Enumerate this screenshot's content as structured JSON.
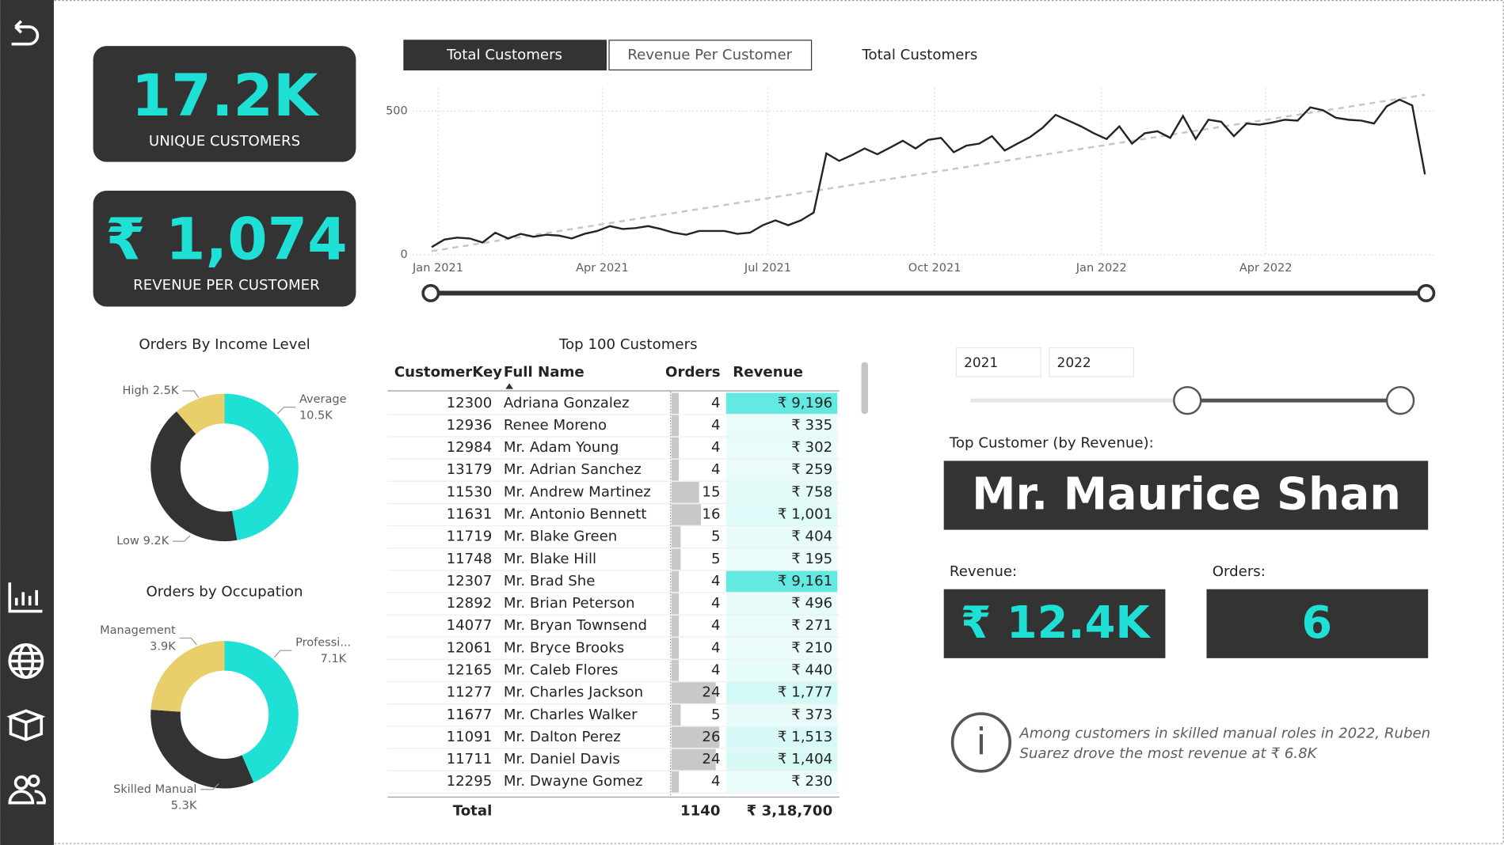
{
  "kpis": [
    {
      "value": "17.2K",
      "label": "UNIQUE CUSTOMERS"
    },
    {
      "value": "₹ 1,074",
      "label": "REVENUE PER CUSTOMER"
    }
  ],
  "buttons": [
    "Total Customers",
    "Revenue Per Customer"
  ],
  "chart_data": [
    {
      "type": "line",
      "title": "Total Customers",
      "color": "#252423",
      "x": [
        0,
        1,
        2,
        3,
        4,
        5,
        6,
        7,
        8,
        9,
        10,
        11,
        12,
        13,
        14,
        15,
        16,
        17,
        18,
        19,
        20,
        21,
        22,
        23,
        24,
        25,
        26,
        27,
        28,
        29,
        30,
        31,
        32,
        33,
        34,
        35,
        36,
        37,
        38,
        39,
        40,
        41,
        42,
        43,
        44,
        45,
        46,
        47,
        48,
        49,
        50,
        51,
        52,
        53,
        54,
        55,
        56,
        57,
        58,
        59,
        60,
        61,
        62,
        63,
        64,
        65,
        66,
        67,
        68,
        69,
        70,
        71,
        72,
        73,
        74,
        75,
        76,
        77,
        78
      ],
      "values": [
        27,
        53,
        60,
        57,
        43,
        77,
        57,
        73,
        63,
        70,
        67,
        57,
        73,
        83,
        100,
        90,
        93,
        100,
        90,
        77,
        70,
        83,
        83,
        83,
        73,
        77,
        103,
        120,
        103,
        120,
        147,
        353,
        327,
        347,
        370,
        350,
        373,
        397,
        370,
        400,
        407,
        357,
        380,
        387,
        413,
        363,
        387,
        410,
        443,
        487,
        467,
        447,
        423,
        403,
        447,
        387,
        423,
        430,
        407,
        483,
        403,
        470,
        463,
        413,
        457,
        453,
        460,
        470,
        467,
        513,
        503,
        477,
        470,
        467,
        457,
        517,
        540,
        520,
        280
      ],
      "trend": {
        "x": [
          0,
          78
        ],
        "values": [
          13,
          557
        ],
        "color": "#c8c6c4"
      },
      "xlim": [
        -1.5,
        78.7
      ],
      "xticks": [
        {
          "value": 0.5,
          "label": "Jan 2021"
        },
        {
          "value": 13.4,
          "label": "Apr 2021"
        },
        {
          "value": 26.4,
          "label": "Jul 2021"
        },
        {
          "value": 39.5,
          "label": "Oct 2021"
        },
        {
          "value": 52.6,
          "label": "Jan 2022"
        },
        {
          "value": 65.5,
          "label": "Apr 2022"
        }
      ],
      "ylim": [
        0,
        580
      ],
      "yticks": [
        0,
        500
      ],
      "grid": true
    },
    {
      "type": "donut",
      "title": "Orders By Income Level",
      "categories": [
        "Average",
        "Low",
        "High"
      ],
      "values": [
        10500,
        9200,
        2500
      ],
      "value_labels": [
        "10.5K",
        "9.2K",
        "2.5K"
      ],
      "colors": [
        "#1fe0d4",
        "#333333",
        "#e8cf6b"
      ]
    },
    {
      "type": "donut",
      "title": "Orders by Occupation",
      "categories": [
        "Professi...",
        "Skilled Manual",
        "Management"
      ],
      "values": [
        7100,
        5300,
        3900
      ],
      "value_labels": [
        "7.1K",
        "5.3K",
        "3.9K"
      ],
      "colors": [
        "#1fe0d4",
        "#333333",
        "#e8cf6b"
      ]
    }
  ],
  "table": {
    "title": "Top 100 Customers",
    "columns": [
      "CustomerKey",
      "Full Name",
      "Orders",
      "Revenue"
    ],
    "rows": [
      [
        12300,
        "Adriana Gonzalez",
        4,
        {
          "value": 9196,
          "label": "₹ 9,196"
        }
      ],
      [
        12936,
        "Renee Moreno",
        4,
        {
          "value": 335,
          "label": "₹ 335"
        }
      ],
      [
        12984,
        "Mr. Adam Young",
        4,
        {
          "value": 302,
          "label": "₹ 302"
        }
      ],
      [
        13179,
        "Mr. Adrian Sanchez",
        4,
        {
          "value": 259,
          "label": "₹ 259"
        }
      ],
      [
        11530,
        "Mr. Andrew Martinez",
        15,
        {
          "value": 758,
          "label": "₹ 758"
        }
      ],
      [
        11631,
        "Mr. Antonio Bennett",
        16,
        {
          "value": 1001,
          "label": "₹ 1,001"
        }
      ],
      [
        11719,
        "Mr. Blake Green",
        5,
        {
          "value": 404,
          "label": "₹ 404"
        }
      ],
      [
        11748,
        "Mr. Blake Hill",
        5,
        {
          "value": 195,
          "label": "₹ 195"
        }
      ],
      [
        12307,
        "Mr. Brad She",
        4,
        {
          "value": 9161,
          "label": "₹ 9,161"
        }
      ],
      [
        12892,
        "Mr. Brian Peterson",
        4,
        {
          "value": 496,
          "label": "₹ 496"
        }
      ],
      [
        14077,
        "Mr. Bryan Townsend",
        4,
        {
          "value": 271,
          "label": "₹ 271"
        }
      ],
      [
        12061,
        "Mr. Bryce Brooks",
        4,
        {
          "value": 210,
          "label": "₹ 210"
        }
      ],
      [
        12165,
        "Mr. Caleb Flores",
        4,
        {
          "value": 440,
          "label": "₹ 440"
        }
      ],
      [
        11277,
        "Mr. Charles Jackson",
        24,
        {
          "value": 1777,
          "label": "₹ 1,777"
        }
      ],
      [
        11677,
        "Mr. Charles Walker",
        5,
        {
          "value": 373,
          "label": "₹ 373"
        }
      ],
      [
        11091,
        "Mr. Dalton Perez",
        26,
        {
          "value": 1513,
          "label": "₹ 1,513"
        }
      ],
      [
        11711,
        "Mr. Daniel Davis",
        24,
        {
          "value": 1404,
          "label": "₹ 1,404"
        }
      ],
      [
        12295,
        "Mr. Dwayne Gomez",
        4,
        {
          "value": 230,
          "label": "₹ 230"
        }
      ]
    ],
    "total": {
      "label": "Total",
      "orders": 1140,
      "revenue": {
        "value": 318700,
        "label": "₹ 3,18,700"
      }
    }
  },
  "slicer": {
    "start": "2021",
    "end": "2022"
  },
  "top_customer": {
    "heading": "Top Customer (by Revenue):",
    "name": "Mr. Maurice Shan",
    "revenue_label": "Revenue:",
    "revenue": "₹ 12.4K",
    "orders_label": "Orders:",
    "orders": 6
  },
  "insight": [
    "Among customers in skilled manual roles in 2022, Ruben",
    "Suarez drove the most revenue at ₹ 6.8K"
  ]
}
